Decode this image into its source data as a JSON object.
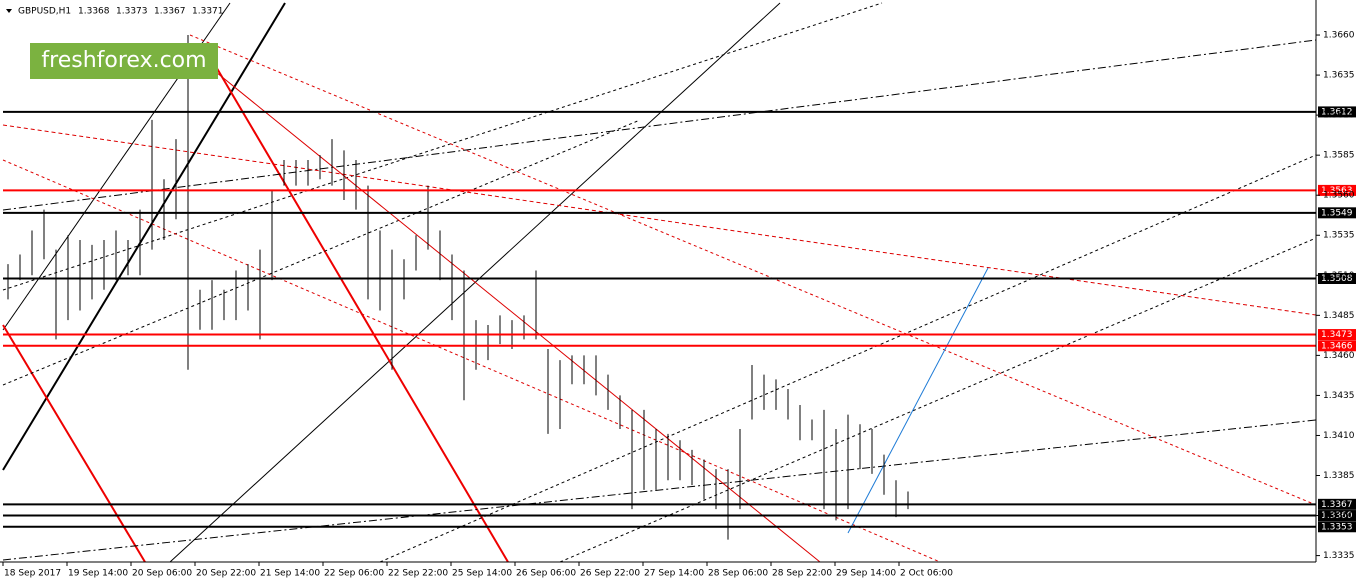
{
  "header": {
    "symbol": "GBPUSD,H1",
    "ohlc": [
      "1.3368",
      "1.3373",
      "1.3367",
      "1.3371"
    ]
  },
  "logo": "freshforex.com",
  "chart_data": {
    "type": "ohlc",
    "ylim": [
      1.3331,
      1.368
    ],
    "yticks": [
      {
        "value": 1.366,
        "label": "1.3660"
      },
      {
        "value": 1.3635,
        "label": "1.3635"
      },
      {
        "value": 1.361,
        "label": "1.3610"
      },
      {
        "value": 1.3585,
        "label": "1.3585"
      },
      {
        "value": 1.356,
        "label": "1.3560"
      },
      {
        "value": 1.3535,
        "label": "1.3535"
      },
      {
        "value": 1.351,
        "label": "1.3510"
      },
      {
        "value": 1.3485,
        "label": "1.3485"
      },
      {
        "value": 1.346,
        "label": "1.3460"
      },
      {
        "value": 1.3435,
        "label": "1.3435"
      },
      {
        "value": 1.341,
        "label": "1.3410"
      },
      {
        "value": 1.3385,
        "label": "1.3385"
      },
      {
        "value": 1.336,
        "label": "1.3360"
      },
      {
        "value": 1.3335,
        "label": "1.3335"
      }
    ],
    "levels": [
      {
        "value": 1.3612,
        "label": "1.3612",
        "color": "#000000"
      },
      {
        "value": 1.3563,
        "label": "1.3563",
        "color": "#ff0000"
      },
      {
        "value": 1.3549,
        "label": "1.3549",
        "color": "#000000"
      },
      {
        "value": 1.3508,
        "label": "1.3508",
        "color": "#000000"
      },
      {
        "value": 1.3473,
        "label": "1.3473",
        "color": "#ff0000"
      },
      {
        "value": 1.3466,
        "label": "1.3466",
        "color": "#ff0000"
      },
      {
        "value": 1.3367,
        "label": "1.3367",
        "color": "#000000"
      },
      {
        "value": 1.336,
        "label": "1.3360",
        "color": "#000000"
      },
      {
        "value": 1.3353,
        "label": "1.3353",
        "color": "#000000"
      }
    ],
    "xlabels": [
      "18 Sep 2017",
      "19 Sep 14:00",
      "20 Sep 06:00",
      "20 Sep 22:00",
      "21 Sep 14:00",
      "22 Sep 06:00",
      "22 Sep 22:00",
      "25 Sep 14:00",
      "26 Sep 06:00",
      "26 Sep 22:00",
      "27 Sep 14:00",
      "28 Sep 06:00",
      "28 Sep 22:00",
      "29 Sep 14:00",
      "2 Oct 06:00"
    ],
    "high": [
      1.3517,
      1.3523,
      1.3538,
      1.3551,
      1.3526,
      1.3535,
      1.3532,
      1.3529,
      1.3532,
      1.3538,
      1.3532,
      1.3551,
      1.3607,
      1.357,
      1.3595,
      1.366,
      1.3501,
      1.3507,
      1.3501,
      1.3513,
      1.3517,
      1.3526,
      1.3563,
      1.3582,
      1.3582,
      1.3582,
      1.3585,
      1.3595,
      1.3588,
      1.3582,
      1.3566,
      1.3538,
      1.3526,
      1.352,
      1.3535,
      1.3566,
      1.3538,
      1.3523,
      1.3513,
      1.3482,
      1.3479,
      1.3485,
      1.3482,
      1.3485,
      1.3513,
      1.3464,
      1.3457,
      1.346,
      1.346,
      1.346,
      1.3448,
      1.3435,
      1.3426,
      1.3426,
      1.3414,
      1.3411,
      1.3407,
      1.3401,
      1.3395,
      1.3389,
      1.3389,
      1.3414,
      1.3454,
      1.3448,
      1.3445,
      1.3439,
      1.3429,
      1.342,
      1.3426,
      1.3414,
      1.3423,
      1.3417,
      1.3414,
      1.3398,
      1.3382,
      1.3375
    ],
    "low": [
      1.3495,
      1.3507,
      1.351,
      1.352,
      1.347,
      1.3482,
      1.3488,
      1.3495,
      1.3501,
      1.3507,
      1.351,
      1.351,
      1.3526,
      1.3532,
      1.3545,
      1.3451,
      1.3476,
      1.3476,
      1.3482,
      1.3482,
      1.3488,
      1.347,
      1.3507,
      1.3566,
      1.3566,
      1.3566,
      1.357,
      1.3566,
      1.3557,
      1.3551,
      1.3495,
      1.3488,
      1.3451,
      1.3495,
      1.3513,
      1.3526,
      1.3507,
      1.3482,
      1.3432,
      1.3451,
      1.3457,
      1.3467,
      1.3464,
      1.347,
      1.347,
      1.3411,
      1.3414,
      1.3442,
      1.3442,
      1.3435,
      1.3426,
      1.3414,
      1.3364,
      1.3376,
      1.3376,
      1.3382,
      1.3382,
      1.3379,
      1.337,
      1.3364,
      1.3345,
      1.3364,
      1.342,
      1.3426,
      1.3426,
      1.342,
      1.3407,
      1.3407,
      1.3364,
      1.3357,
      1.3364,
      1.3389,
      1.3386,
      1.3373,
      1.3359,
      1.3364
    ]
  }
}
